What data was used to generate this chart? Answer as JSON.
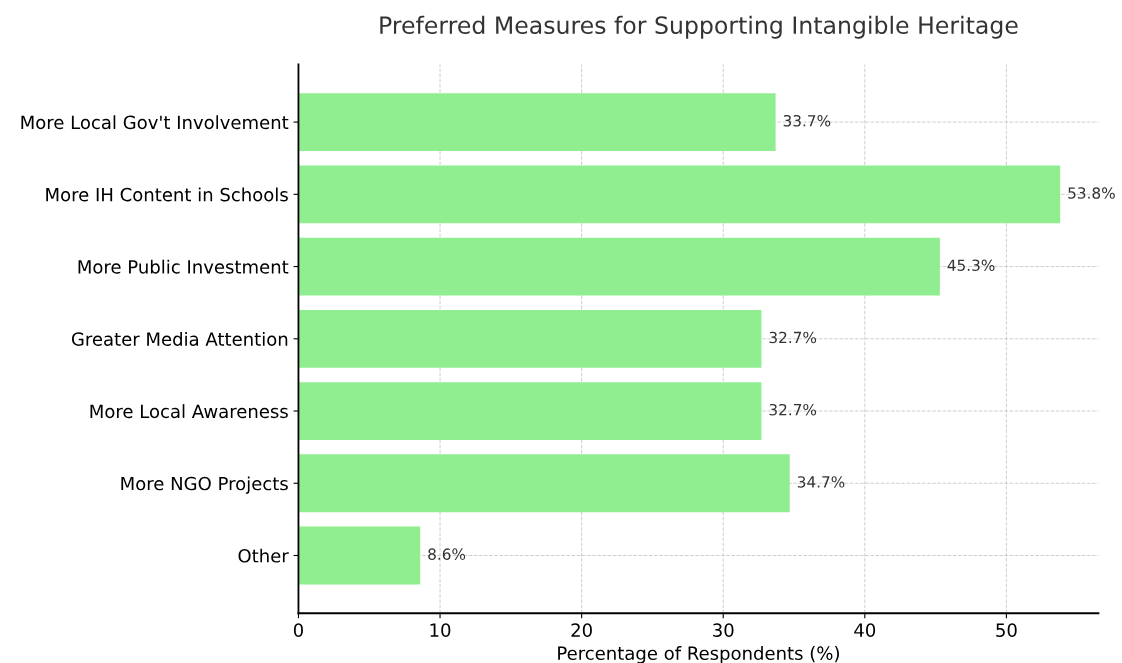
{
  "chart_data": {
    "type": "bar",
    "orientation": "horizontal",
    "title": "Preferred Measures for Supporting Intangible Heritage",
    "xlabel": "Percentage of Respondents (%)",
    "categories": [
      "More Local Gov't Involvement",
      "More IH Content in Schools",
      "More Public Investment",
      "Greater Media Attention",
      "More Local Awareness",
      "More NGO Projects",
      "Other"
    ],
    "values": [
      33.7,
      53.8,
      45.3,
      32.7,
      32.7,
      34.7,
      8.6
    ],
    "value_labels": [
      "33.7%",
      "53.8%",
      "45.3%",
      "32.7%",
      "32.7%",
      "34.7%",
      "8.6%"
    ],
    "color": "#90ee90",
    "xlim": [
      0,
      56.5
    ],
    "xticks": [
      0,
      10,
      20,
      30,
      40,
      50
    ],
    "grid": true,
    "line_style": "dashed"
  }
}
